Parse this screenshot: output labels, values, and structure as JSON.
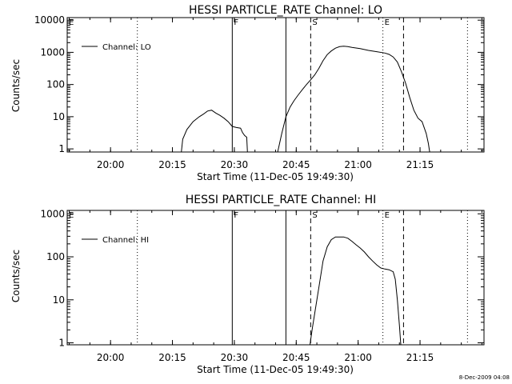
{
  "stamp": "8-Dec-2009 04:08",
  "chart_data": [
    {
      "type": "line",
      "title": "HESSI PARTICLE_RATE Channel: LO",
      "xlabel": "Start Time (11-Dec-05 19:49:30)",
      "ylabel": "Counts/sec",
      "yscale": "log",
      "xlim": [
        "19:49:30",
        "21:30:30"
      ],
      "ylim": [
        0.8,
        12000
      ],
      "xticks": [
        "20:00",
        "20:15",
        "20:30",
        "20:45",
        "21:00",
        "21:15"
      ],
      "yticks": [
        {
          "value": 1,
          "label": "1"
        },
        {
          "value": 10,
          "label": "10"
        },
        {
          "value": 100,
          "label": "100"
        },
        {
          "value": 1000,
          "label": "1000"
        },
        {
          "value": 10000,
          "label": "10000"
        }
      ],
      "legend": {
        "label": "Channel: LO",
        "position": "top-left"
      },
      "series": [
        {
          "name": "Channel: LO",
          "segments": [
            [
              [
                "20:17:10",
                0.8
              ],
              [
                "20:17:30",
                2
              ],
              [
                "20:18:30",
                4
              ],
              [
                "20:20:00",
                7
              ],
              [
                "20:21:30",
                10
              ],
              [
                "20:22:30",
                12
              ],
              [
                "20:23:30",
                15
              ],
              [
                "20:24:30",
                16
              ],
              [
                "20:25:30",
                13
              ],
              [
                "20:26:30",
                11
              ],
              [
                "20:27:30",
                9
              ],
              [
                "20:28:30",
                7
              ],
              [
                "20:29:30",
                5
              ],
              [
                "20:30:30",
                4.6
              ],
              [
                "20:31:30",
                4.4
              ],
              [
                "20:32:00",
                3.2
              ],
              [
                "20:32:30",
                2.6
              ],
              [
                "20:33:00",
                2.3
              ],
              [
                "20:33:10",
                0.8
              ]
            ],
            [
              [
                "20:40:30",
                0.8
              ],
              [
                "20:41:30",
                3
              ],
              [
                "20:42:30",
                10
              ],
              [
                "20:43:30",
                20
              ],
              [
                "20:44:30",
                32
              ],
              [
                "20:45:30",
                48
              ],
              [
                "20:46:30",
                70
              ],
              [
                "20:47:30",
                100
              ],
              [
                "20:48:30",
                140
              ],
              [
                "20:49:30",
                200
              ],
              [
                "20:50:30",
                320
              ],
              [
                "20:51:30",
                550
              ],
              [
                "20:52:30",
                850
              ],
              [
                "20:53:30",
                1100
              ],
              [
                "20:54:30",
                1350
              ],
              [
                "20:55:30",
                1500
              ],
              [
                "20:56:30",
                1550
              ],
              [
                "20:57:30",
                1500
              ],
              [
                "20:58:30",
                1420
              ],
              [
                "21:00:30",
                1300
              ],
              [
                "21:02:30",
                1150
              ],
              [
                "21:04:30",
                1050
              ],
              [
                "21:06:30",
                950
              ],
              [
                "21:07:30",
                860
              ],
              [
                "21:08:30",
                720
              ],
              [
                "21:09:30",
                500
              ],
              [
                "21:10:30",
                250
              ],
              [
                "21:11:30",
                110
              ],
              [
                "21:12:30",
                40
              ],
              [
                "21:13:30",
                16
              ],
              [
                "21:14:30",
                9
              ],
              [
                "21:15:30",
                7
              ],
              [
                "21:16:30",
                3
              ],
              [
                "21:17:00",
                1.5
              ],
              [
                "21:17:20",
                0.8
              ]
            ]
          ]
        }
      ],
      "markers": [
        {
          "time": "19:49:30",
          "letter": "E",
          "style": "dotted"
        },
        {
          "time": "20:06:30",
          "letter": "",
          "style": "dotted"
        },
        {
          "time": "20:29:30",
          "letter": "F",
          "style": "solid"
        },
        {
          "time": "20:42:30",
          "letter": "",
          "style": "solid"
        },
        {
          "time": "20:48:30",
          "letter": "S",
          "style": "dashed"
        },
        {
          "time": "21:06:00",
          "letter": "E",
          "style": "dotted"
        },
        {
          "time": "21:11:00",
          "letter": "",
          "style": "dashed"
        },
        {
          "time": "21:26:30",
          "letter": "",
          "style": "dotted"
        }
      ]
    },
    {
      "type": "line",
      "title": "HESSI PARTICLE_RATE Channel: HI",
      "xlabel": "Start Time (11-Dec-05 19:49:30)",
      "ylabel": "Counts/sec",
      "yscale": "log",
      "xlim": [
        "19:49:30",
        "21:30:30"
      ],
      "ylim": [
        0.9,
        1200
      ],
      "xticks": [
        "20:00",
        "20:15",
        "20:30",
        "20:45",
        "21:00",
        "21:15"
      ],
      "yticks": [
        {
          "value": 1,
          "label": "1"
        },
        {
          "value": 10,
          "label": "10"
        },
        {
          "value": 100,
          "label": "100"
        },
        {
          "value": 1000,
          "label": "1000"
        }
      ],
      "legend": {
        "label": "Channel: HI",
        "position": "top-left"
      },
      "series": [
        {
          "name": "Channel: HI",
          "segments": [
            [
              [
                "20:48:20",
                0.9
              ],
              [
                "20:48:50",
                2
              ],
              [
                "20:49:30",
                5
              ],
              [
                "20:50:30",
                20
              ],
              [
                "20:51:30",
                80
              ],
              [
                "20:52:30",
                170
              ],
              [
                "20:53:30",
                250
              ],
              [
                "20:54:30",
                290
              ],
              [
                "20:56:30",
                290
              ],
              [
                "20:57:30",
                270
              ],
              [
                "20:58:30",
                230
              ],
              [
                "20:59:30",
                190
              ],
              [
                "21:00:30",
                160
              ],
              [
                "21:01:30",
                130
              ],
              [
                "21:02:30",
                100
              ],
              [
                "21:03:30",
                80
              ],
              [
                "21:04:30",
                65
              ],
              [
                "21:05:30",
                55
              ],
              [
                "21:06:30",
                52
              ],
              [
                "21:07:30",
                50
              ],
              [
                "21:08:30",
                45
              ],
              [
                "21:09:00",
                30
              ],
              [
                "21:09:30",
                10
              ],
              [
                "21:10:00",
                2.5
              ],
              [
                "21:10:20",
                0.9
              ]
            ]
          ]
        }
      ],
      "markers": [
        {
          "time": "19:49:30",
          "letter": "E",
          "style": "dotted"
        },
        {
          "time": "20:06:30",
          "letter": "",
          "style": "dotted"
        },
        {
          "time": "20:29:30",
          "letter": "F",
          "style": "solid"
        },
        {
          "time": "20:42:30",
          "letter": "",
          "style": "solid"
        },
        {
          "time": "20:48:30",
          "letter": "S",
          "style": "dashed"
        },
        {
          "time": "21:06:00",
          "letter": "E",
          "style": "dotted"
        },
        {
          "time": "21:11:00",
          "letter": "",
          "style": "dashed"
        },
        {
          "time": "21:26:30",
          "letter": "",
          "style": "dotted"
        }
      ]
    }
  ]
}
